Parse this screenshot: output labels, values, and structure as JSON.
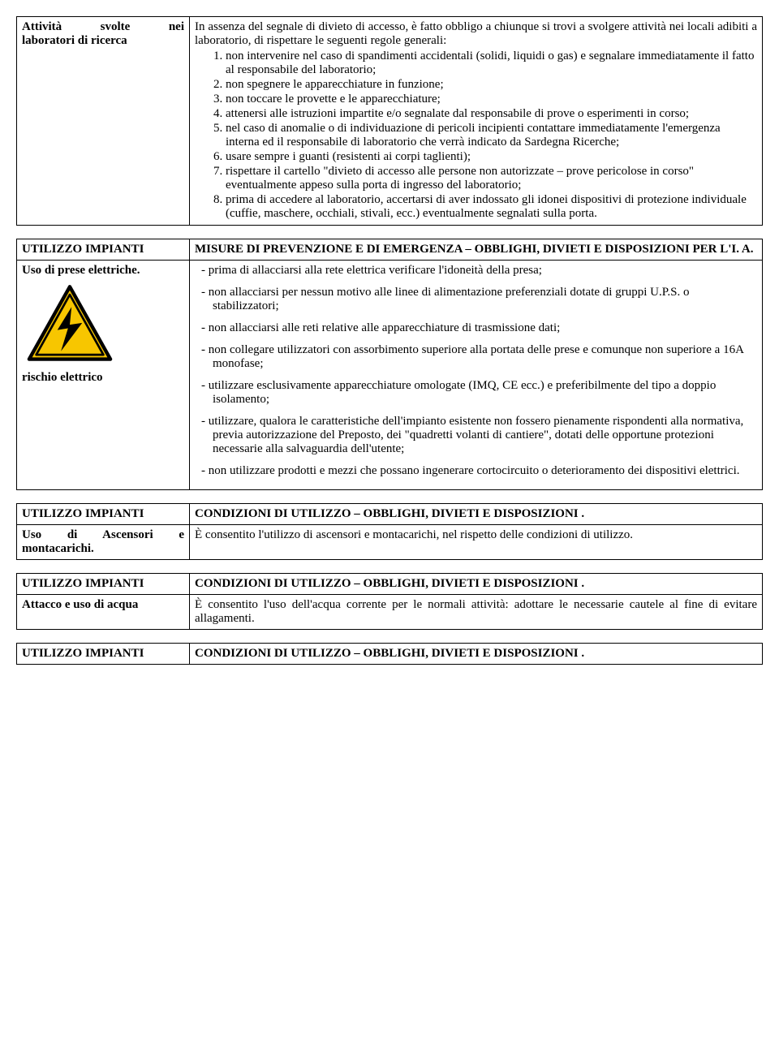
{
  "colors": {
    "triangle_fill": "#f7c600",
    "triangle_border": "#000000",
    "bolt": "#000000",
    "page_bg": "#ffffff"
  },
  "section1": {
    "left_line1": "Attività svolte nei",
    "left_line2": "laboratori di ricerca",
    "intro": "In assenza del segnale di divieto di accesso, è fatto obbligo a chiunque si trovi a svolgere attività nei locali adibiti a laboratorio, di rispettare le seguenti regole generali:",
    "rules": [
      "non intervenire nel caso di spandimenti accidentali (solidi, liquidi o gas) e segnalare immediatamente il fatto al responsabile del laboratorio;",
      "non spegnere le apparecchiature in funzione;",
      "non toccare le provette e le apparecchiature;",
      "attenersi alle istruzioni impartite e/o segnalate dal responsabile di prove o esperimenti in corso;",
      "nel caso di anomalie o di individuazione di pericoli incipienti contattare immediatamente l'emergenza interna ed il responsabile di laboratorio che verrà indicato da Sardegna Ricerche;",
      "usare sempre i guanti (resistenti ai corpi taglienti);",
      "rispettare il cartello \"divieto di accesso alle persone non autorizzate – prove pericolose in corso\" eventualmente appeso sulla porta di ingresso del laboratorio;",
      "prima di accedere al laboratorio, accertarsi di aver indossato gli idonei dispositivi di protezione individuale (cuffie, maschere, occhiali, stivali, ecc.) eventualmente segnalati sulla porta."
    ]
  },
  "section2": {
    "left_heading": "UTILIZZO IMPIANTI",
    "right_heading": "MISURE DI PREVENZIONE E DI EMERGENZA – OBBLIGHI, DIVIETI E DISPOSIZIONI PER L'I. A.",
    "left_sub1": "Uso di prese elettriche.",
    "left_sub2": "rischio elettrico",
    "bullets": [
      "- prima di allacciarsi alla rete elettrica verificare l'idoneità della presa;",
      "- non allacciarsi per nessun motivo alle linee di alimentazione preferenziali dotate di gruppi U.P.S. o stabilizzatori;",
      "- non allacciarsi alle reti relative alle apparecchiature di trasmissione dati;",
      "- non collegare utilizzatori con assorbimento superiore alla portata delle prese e comunque non superiore a 16A monofase;",
      "- utilizzare esclusivamente apparecchiature omologate (IMQ, CE ecc.) e preferibilmente del tipo a doppio isolamento;",
      "- utilizzare, qualora le caratteristiche dell'impianto esistente non fossero pienamente rispondenti alla normativa, previa autorizzazione del Preposto, dei \"quadretti volanti di cantiere\", dotati delle opportune protezioni necessarie alla salvaguardia dell'utente;",
      "- non utilizzare prodotti e mezzi che possano ingenerare cortocircuito o deterioramento dei dispositivi elettrici."
    ]
  },
  "section3": {
    "left_heading": "UTILIZZO IMPIANTI",
    "right_heading": "CONDIZIONI DI UTILIZZO – OBBLIGHI, DIVIETI E DISPOSIZIONI .",
    "left_line1": "Uso di Ascensori e",
    "left_line2": "montacarichi.",
    "body": "È consentito l'utilizzo di ascensori e montacarichi, nel rispetto delle condizioni di utilizzo."
  },
  "section4": {
    "left_heading": "UTILIZZO IMPIANTI",
    "right_heading": "CONDIZIONI DI UTILIZZO – OBBLIGHI, DIVIETI E DISPOSIZIONI .",
    "left_sub": "Attacco e uso di acqua",
    "body": "È consentito l'uso dell'acqua corrente per le normali attività: adottare le necessarie cautele al fine di evitare allagamenti."
  },
  "section5": {
    "left_heading": "UTILIZZO IMPIANTI",
    "right_heading": "CONDIZIONI DI UTILIZZO – OBBLIGHI, DIVIETI E DISPOSIZIONI ."
  }
}
